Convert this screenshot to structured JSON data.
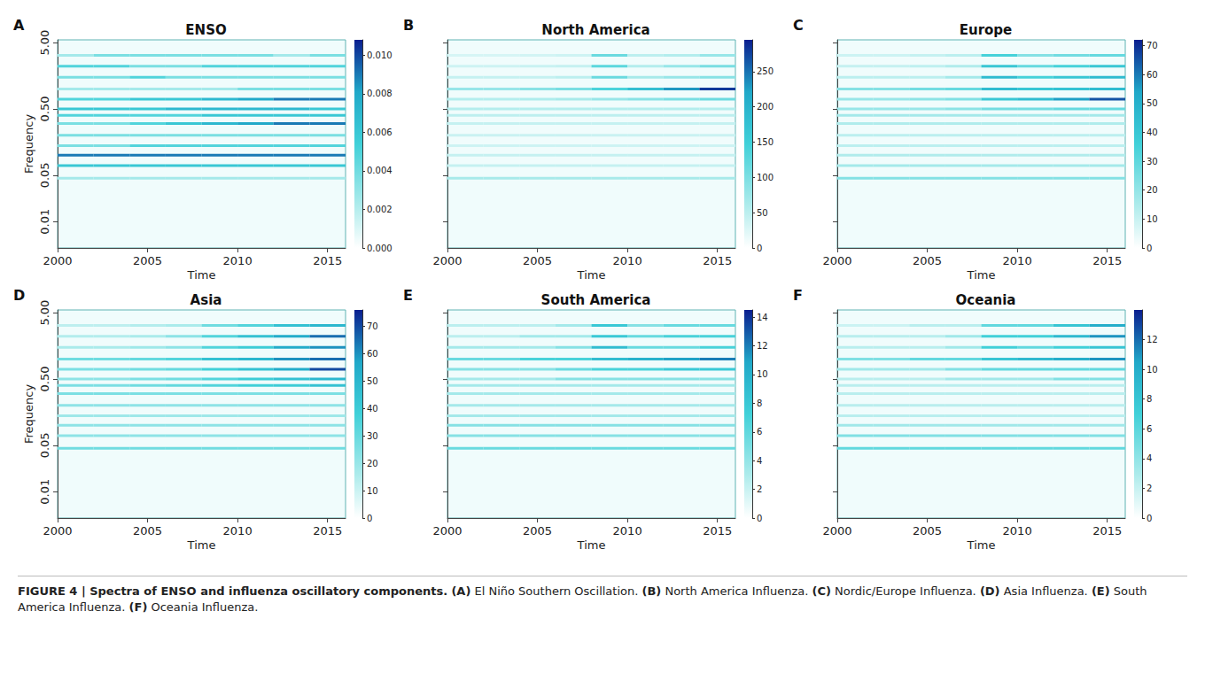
{
  "chart_data": [
    {
      "type": "heatmap",
      "letter": "A",
      "title": "ENSO",
      "x_label": "Time",
      "y_label": "Frequency",
      "log": "y",
      "x": [
        2001,
        2003,
        2005,
        2007,
        2009,
        2011,
        2013,
        2015
      ],
      "y": [
        0.045,
        0.07,
        0.1,
        0.14,
        0.2,
        0.3,
        0.4,
        0.5,
        0.7,
        1.0,
        1.5,
        2.2,
        3.2
      ],
      "cells": [
        [
          0.003,
          0.003,
          0.003,
          0.003,
          0.003,
          0.003,
          0.003,
          0.003
        ],
        [
          0.006,
          0.006,
          0.006,
          0.006,
          0.006,
          0.006,
          0.006,
          0.006
        ],
        [
          0.009,
          0.009,
          0.009,
          0.009,
          0.009,
          0.009,
          0.009,
          0.009
        ],
        [
          0.004,
          0.004,
          0.005,
          0.005,
          0.005,
          0.005,
          0.005,
          0.005
        ],
        [
          0.004,
          0.004,
          0.004,
          0.004,
          0.004,
          0.004,
          0.004,
          0.004
        ],
        [
          0.004,
          0.004,
          0.005,
          0.006,
          0.007,
          0.008,
          0.009,
          0.009
        ],
        [
          0.005,
          0.005,
          0.005,
          0.005,
          0.006,
          0.006,
          0.006,
          0.006
        ],
        [
          0.006,
          0.006,
          0.006,
          0.007,
          0.007,
          0.007,
          0.007,
          0.006
        ],
        [
          0.005,
          0.005,
          0.006,
          0.006,
          0.007,
          0.008,
          0.009,
          0.009
        ],
        [
          0.003,
          0.003,
          0.003,
          0.003,
          0.003,
          0.004,
          0.004,
          0.004
        ],
        [
          0.004,
          0.004,
          0.005,
          0.004,
          0.004,
          0.004,
          0.004,
          0.004
        ],
        [
          0.005,
          0.005,
          0.004,
          0.004,
          0.005,
          0.005,
          0.005,
          0.005
        ],
        [
          0.003,
          0.004,
          0.004,
          0.004,
          0.004,
          0.004,
          0.003,
          0.004
        ]
      ],
      "xlim": [
        2000,
        2016
      ],
      "xticks": [
        2000,
        2005,
        2010,
        2015
      ],
      "ylim": [
        0.004,
        5.5
      ],
      "yticks": [
        0.01,
        0.05,
        {
          "value": 0.5,
          "label": "0.50"
        },
        {
          "value": 5,
          "label": "5.00"
        }
      ],
      "colorbar": {
        "range": [
          0,
          0.0108
        ],
        "ticks": [
          {
            "value": 0,
            "label": "0.000"
          },
          0.002,
          0.004,
          0.006,
          0.008,
          {
            "value": 0.01,
            "label": "0.010"
          }
        ]
      }
    },
    {
      "type": "heatmap",
      "letter": "B",
      "title": "North America",
      "x_label": "Time",
      "log": "y",
      "tick_labels": "x",
      "x": [
        2001,
        2003,
        2005,
        2007,
        2009,
        2011,
        2013,
        2015
      ],
      "y": [
        0.045,
        0.07,
        0.1,
        0.14,
        0.2,
        0.3,
        0.4,
        0.5,
        0.7,
        1.0,
        1.5,
        2.2,
        3.2
      ],
      "cells": [
        [
          80,
          80,
          80,
          80,
          80,
          80,
          80,
          80
        ],
        [
          50,
          50,
          50,
          50,
          50,
          50,
          50,
          50
        ],
        [
          50,
          50,
          50,
          50,
          50,
          50,
          50,
          50
        ],
        [
          40,
          40,
          40,
          40,
          40,
          40,
          40,
          40
        ],
        [
          45,
          45,
          45,
          45,
          45,
          45,
          45,
          45
        ],
        [
          50,
          50,
          50,
          50,
          50,
          50,
          50,
          50
        ],
        [
          60,
          60,
          60,
          60,
          60,
          60,
          60,
          60
        ],
        [
          70,
          70,
          70,
          70,
          70,
          70,
          70,
          70
        ],
        [
          70,
          70,
          75,
          80,
          90,
          100,
          110,
          120
        ],
        [
          90,
          90,
          100,
          110,
          140,
          180,
          230,
          280
        ],
        [
          50,
          50,
          50,
          60,
          120,
          80,
          90,
          100
        ],
        [
          40,
          40,
          45,
          50,
          130,
          70,
          90,
          110
        ],
        [
          30,
          30,
          35,
          40,
          120,
          60,
          70,
          90
        ]
      ],
      "xlim": [
        2000,
        2016
      ],
      "xticks": [
        2000,
        2005,
        2010,
        2015
      ],
      "ylim": [
        0.004,
        5.5
      ],
      "yticks": [
        0.01,
        0.05,
        0.5,
        5
      ],
      "colorbar": {
        "range": [
          0,
          295
        ],
        "ticks": [
          0,
          50,
          100,
          150,
          200,
          250
        ]
      }
    },
    {
      "type": "heatmap",
      "letter": "C",
      "title": "Europe",
      "x_label": "Time",
      "log": "y",
      "tick_labels": "x",
      "x": [
        2001,
        2003,
        2005,
        2007,
        2009,
        2011,
        2013,
        2015
      ],
      "y": [
        0.045,
        0.07,
        0.1,
        0.14,
        0.2,
        0.3,
        0.4,
        0.5,
        0.7,
        1.0,
        1.5,
        2.2,
        3.2
      ],
      "cells": [
        [
          25,
          25,
          25,
          25,
          25,
          25,
          25,
          25
        ],
        [
          20,
          20,
          20,
          20,
          20,
          20,
          20,
          20
        ],
        [
          18,
          18,
          18,
          18,
          18,
          18,
          18,
          18
        ],
        [
          15,
          15,
          15,
          15,
          15,
          15,
          15,
          15
        ],
        [
          15,
          15,
          15,
          15,
          15,
          15,
          15,
          15
        ],
        [
          18,
          18,
          18,
          18,
          18,
          18,
          18,
          18
        ],
        [
          20,
          20,
          20,
          20,
          20,
          20,
          20,
          20
        ],
        [
          22,
          22,
          22,
          24,
          28,
          28,
          30,
          30
        ],
        [
          22,
          22,
          24,
          26,
          40,
          45,
          55,
          65
        ],
        [
          25,
          25,
          28,
          30,
          45,
          40,
          42,
          45
        ],
        [
          15,
          15,
          15,
          20,
          45,
          35,
          40,
          45
        ],
        [
          12,
          12,
          14,
          18,
          40,
          30,
          35,
          40
        ],
        [
          10,
          10,
          12,
          15,
          35,
          25,
          28,
          30
        ]
      ],
      "xlim": [
        2000,
        2016
      ],
      "xticks": [
        2000,
        2005,
        2010,
        2015
      ],
      "ylim": [
        0.004,
        5.5
      ],
      "yticks": [
        0.01,
        0.05,
        0.5,
        5
      ],
      "colorbar": {
        "range": [
          0,
          72
        ],
        "ticks": [
          0,
          10,
          20,
          30,
          40,
          50,
          60,
          70
        ]
      }
    },
    {
      "type": "heatmap",
      "letter": "D",
      "title": "Asia",
      "x_label": "Time",
      "y_label": "Frequency",
      "log": "y",
      "x": [
        2001,
        2003,
        2005,
        2007,
        2009,
        2011,
        2013,
        2015
      ],
      "y": [
        0.045,
        0.07,
        0.1,
        0.14,
        0.2,
        0.3,
        0.4,
        0.5,
        0.7,
        1.0,
        1.5,
        2.2,
        3.2
      ],
      "cells": [
        [
          30,
          30,
          30,
          30,
          30,
          30,
          30,
          30
        ],
        [
          25,
          25,
          25,
          25,
          25,
          25,
          25,
          25
        ],
        [
          25,
          25,
          25,
          25,
          25,
          25,
          25,
          25
        ],
        [
          22,
          22,
          22,
          22,
          22,
          22,
          22,
          22
        ],
        [
          25,
          25,
          25,
          25,
          25,
          25,
          25,
          25
        ],
        [
          28,
          28,
          28,
          28,
          28,
          28,
          28,
          28
        ],
        [
          28,
          28,
          30,
          32,
          35,
          38,
          40,
          45
        ],
        [
          25,
          25,
          28,
          30,
          35,
          40,
          45,
          50
        ],
        [
          28,
          28,
          30,
          32,
          38,
          45,
          55,
          70
        ],
        [
          30,
          30,
          32,
          35,
          45,
          50,
          60,
          65
        ],
        [
          20,
          20,
          22,
          25,
          35,
          40,
          55,
          60
        ],
        [
          18,
          18,
          20,
          25,
          35,
          45,
          55,
          65
        ],
        [
          15,
          15,
          18,
          20,
          30,
          35,
          45,
          50
        ]
      ],
      "xlim": [
        2000,
        2016
      ],
      "xticks": [
        2000,
        2005,
        2010,
        2015
      ],
      "ylim": [
        0.004,
        5.5
      ],
      "yticks": [
        0.01,
        0.05,
        {
          "value": 0.5,
          "label": "0.50"
        },
        {
          "value": 5,
          "label": "5.00"
        }
      ],
      "colorbar": {
        "range": [
          0,
          76
        ],
        "ticks": [
          0,
          10,
          20,
          30,
          40,
          50,
          60,
          70
        ]
      }
    },
    {
      "type": "heatmap",
      "letter": "E",
      "title": "South America",
      "x_label": "Time",
      "log": "y",
      "tick_labels": "x",
      "x": [
        2001,
        2003,
        2005,
        2007,
        2009,
        2011,
        2013,
        2015
      ],
      "y": [
        0.045,
        0.07,
        0.1,
        0.14,
        0.2,
        0.3,
        0.4,
        0.5,
        0.7,
        1.0,
        1.5,
        2.2,
        3.2
      ],
      "cells": [
        [
          6,
          6,
          6,
          6,
          6,
          6,
          6,
          6
        ],
        [
          5,
          5,
          5,
          5,
          5,
          5,
          5,
          5
        ],
        [
          5,
          5,
          5,
          5,
          5,
          5,
          5,
          5
        ],
        [
          4,
          4,
          4,
          4,
          4,
          4,
          4,
          4
        ],
        [
          4,
          4,
          4,
          4,
          4,
          4,
          4,
          4
        ],
        [
          4,
          4,
          4,
          4,
          4,
          4,
          4,
          4
        ],
        [
          4,
          4,
          4,
          4,
          4,
          4,
          4,
          4
        ],
        [
          4,
          4,
          4,
          5,
          5,
          5,
          5,
          5
        ],
        [
          5,
          5,
          5,
          6,
          7,
          7,
          8,
          8
        ],
        [
          6,
          6,
          7,
          7,
          9,
          10,
          11,
          12
        ],
        [
          4,
          4,
          4,
          5,
          9,
          6,
          6,
          7
        ],
        [
          3,
          3,
          4,
          4,
          8,
          6,
          7,
          7
        ],
        [
          3,
          3,
          3,
          4,
          8,
          5,
          6,
          6
        ]
      ],
      "xlim": [
        2000,
        2016
      ],
      "xticks": [
        2000,
        2005,
        2010,
        2015
      ],
      "ylim": [
        0.004,
        5.5
      ],
      "yticks": [
        0.01,
        0.05,
        0.5,
        5
      ],
      "colorbar": {
        "range": [
          0,
          14.5
        ],
        "ticks": [
          0,
          2,
          4,
          6,
          8,
          10,
          12,
          14
        ]
      }
    },
    {
      "type": "heatmap",
      "letter": "F",
      "title": "Oceania",
      "x_label": "Time",
      "log": "y",
      "tick_labels": "x",
      "x": [
        2001,
        2003,
        2005,
        2007,
        2009,
        2011,
        2013,
        2015
      ],
      "y": [
        0.045,
        0.07,
        0.1,
        0.14,
        0.2,
        0.3,
        0.4,
        0.5,
        0.7,
        1.0,
        1.5,
        2.2,
        3.2
      ],
      "cells": [
        [
          6,
          6,
          6,
          6,
          6,
          6,
          6,
          6
        ],
        [
          5,
          5,
          5,
          5,
          5,
          5,
          5,
          5
        ],
        [
          4,
          4,
          4,
          4,
          4,
          4,
          4,
          4
        ],
        [
          3,
          3,
          3,
          3,
          3,
          3,
          3,
          3
        ],
        [
          3,
          3,
          3,
          3,
          3,
          3,
          3,
          3
        ],
        [
          3,
          3,
          3,
          3,
          3,
          3,
          3,
          3
        ],
        [
          3,
          3,
          3,
          3,
          3,
          3,
          3,
          3
        ],
        [
          3,
          3,
          3,
          4,
          4,
          4,
          5,
          5
        ],
        [
          4,
          4,
          4,
          5,
          6,
          6,
          6,
          6
        ],
        [
          5,
          5,
          6,
          6,
          8,
          9,
          10,
          11
        ],
        [
          3,
          3,
          3,
          4,
          7,
          6,
          7,
          8
        ],
        [
          3,
          3,
          3,
          4,
          7,
          7,
          9,
          11
        ],
        [
          2,
          2,
          3,
          3,
          6,
          6,
          8,
          10
        ]
      ],
      "xlim": [
        2000,
        2016
      ],
      "xticks": [
        2000,
        2005,
        2010,
        2015
      ],
      "ylim": [
        0.004,
        5.5
      ],
      "yticks": [
        0.01,
        0.05,
        0.5,
        5
      ],
      "colorbar": {
        "range": [
          0,
          14
        ],
        "ticks": [
          0,
          2,
          4,
          6,
          8,
          10,
          12
        ]
      }
    }
  ],
  "caption": {
    "title": "FIGURE 4 | Spectra of ENSO and influenza oscillatory components.",
    "items": [
      [
        "(A)",
        "El Niño Southern Oscillation."
      ],
      [
        "(B)",
        "North America Influenza."
      ],
      [
        "(C)",
        "Nordic/Europe Influenza."
      ],
      [
        "(D)",
        "Asia Influenza."
      ],
      [
        "(E)",
        "South America Influenza."
      ],
      [
        "(F)",
        "Oceania Influenza."
      ]
    ]
  }
}
